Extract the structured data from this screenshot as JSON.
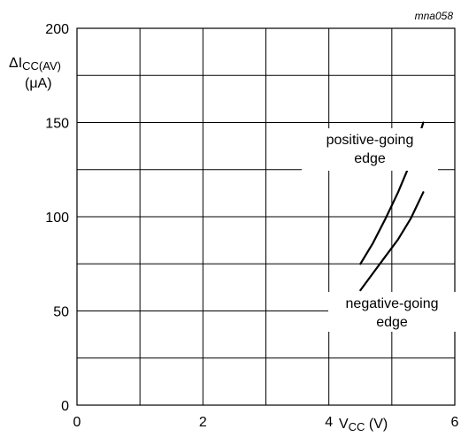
{
  "figure_id": "mna058",
  "chart_data": {
    "type": "line",
    "xlim": [
      0,
      6
    ],
    "ylim": [
      0,
      200
    ],
    "x_ticks": [
      0,
      2,
      4,
      6
    ],
    "x_tick_labels": [
      "0",
      "2",
      "4",
      "6"
    ],
    "y_ticks": [
      0,
      50,
      100,
      150,
      200
    ],
    "y_tick_labels": [
      "0",
      "50",
      "100",
      "150",
      "200"
    ],
    "x_grid_step": 1,
    "y_grid_step": 25,
    "grid": true,
    "xlabel": {
      "main": "V",
      "sub": "CC",
      "unit": " (V)"
    },
    "ylabel": {
      "main": "ΔI",
      "sub": "CC(AV)",
      "unit": "(μA)"
    },
    "series": [
      {
        "name": "positive-going edge",
        "label_lines": [
          "positive-going",
          "edge"
        ],
        "x": [
          4.5,
          4.7,
          4.9,
          5.1,
          5.3,
          5.5
        ],
        "y": [
          75,
          86,
          99,
          113,
          129,
          150
        ]
      },
      {
        "name": "negative-going edge",
        "label_lines": [
          "negative-going",
          "edge"
        ],
        "x": [
          4.5,
          4.7,
          4.9,
          5.1,
          5.3,
          5.5
        ],
        "y": [
          61,
          70,
          79,
          88,
          99,
          113
        ]
      }
    ]
  }
}
